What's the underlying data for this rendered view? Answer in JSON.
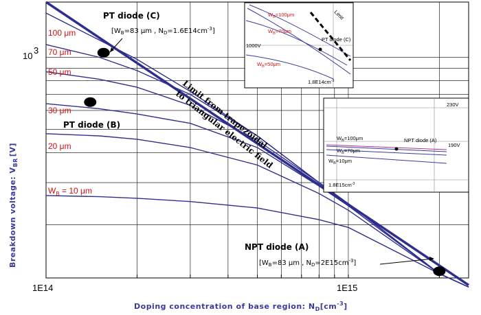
{
  "chart_data": {
    "type": "line",
    "xlabel_main": "Doping concentration of base region: N",
    "xlabel_sub": "D",
    "xlabel_unit": "[cm",
    "xlabel_unit_sup": "-3",
    "xlabel_close": "]",
    "ylabel_main": "Breakdown voltage: V",
    "ylabel_sub": "BR",
    "ylabel_unit": "[V]",
    "x_ticks": [
      "1E14",
      "1E15"
    ],
    "y_ticks": [
      "10",
      "3"
    ],
    "x_scale": "log",
    "y_scale": "log",
    "xlim": [
      100000000000000.0,
      2500000000000000.0
    ],
    "ylim": [
      120,
      1700
    ],
    "grid": true,
    "series": [
      {
        "name": "100 μm",
        "x": [
          100000000000000.0,
          150000000000000.0,
          200000000000000.0,
          300000000000000.0,
          500000000000000.0,
          800000000000000.0,
          1000000000000000.0,
          2000000000000000.0,
          2500000000000000.0
        ],
        "values": [
          1530,
          1180,
          980,
          720,
          470,
          300,
          245,
          125,
          110
        ]
      },
      {
        "name": "70 μm",
        "x": [
          100000000000000.0,
          150000000000000.0,
          200000000000000.0,
          300000000000000.0,
          500000000000000.0,
          800000000000000.0,
          1000000000000000.0,
          2000000000000000.0,
          2500000000000000.0
        ],
        "values": [
          1130,
          1000,
          880,
          700,
          470,
          300,
          245,
          125,
          110
        ]
      },
      {
        "name": "50 μm",
        "x": [
          100000000000000.0,
          150000000000000.0,
          200000000000000.0,
          300000000000000.0,
          500000000000000.0,
          800000000000000.0,
          1000000000000000.0,
          2000000000000000.0,
          2500000000000000.0
        ],
        "values": [
          870,
          810,
          750,
          630,
          450,
          300,
          245,
          125,
          110
        ]
      },
      {
        "name": "30 μm",
        "x": [
          100000000000000.0,
          150000000000000.0,
          200000000000000.0,
          300000000000000.0,
          500000000000000.0,
          800000000000000.0,
          1000000000000000.0,
          2000000000000000.0,
          2500000000000000.0
        ],
        "values": [
          640,
          610,
          580,
          530,
          420,
          290,
          240,
          125,
          110
        ]
      },
      {
        "name": "20 μm",
        "x": [
          100000000000000.0,
          150000000000000.0,
          200000000000000.0,
          300000000000000.0,
          500000000000000.0,
          800000000000000.0,
          1000000000000000.0,
          2000000000000000.0,
          2500000000000000.0
        ],
        "values": [
          480,
          470,
          455,
          420,
          355,
          270,
          230,
          125,
          110
        ]
      },
      {
        "name": "10 μm",
        "x": [
          100000000000000.0,
          150000000000000.0,
          200000000000000.0,
          300000000000000.0,
          500000000000000.0,
          800000000000000.0,
          1000000000000000.0,
          2000000000000000.0,
          2500000000000000.0
        ],
        "values": [
          265,
          262,
          258,
          250,
          235,
          210,
          195,
          125,
          110
        ]
      }
    ],
    "limit_line": {
      "x": [
        100000000000000.0,
        2500000000000000.0
      ],
      "values": [
        1700,
        112
      ]
    },
    "limit_label_1": "Limit from trapezoidal",
    "limit_label_2": "to triangular electric field",
    "series_labels": {
      "l100": "100 μm",
      "l70": "70 μm",
      "l50": "50 μm",
      "l30": "30 μm",
      "l20": "20 μm",
      "l10_w": "W",
      "l10_sub": "B",
      "l10_rest": " = 10 μm"
    },
    "points": [
      {
        "name": "PT diode (C)",
        "x": 155000000000000.0,
        "y": 1045
      },
      {
        "name": "PT diode (B)",
        "x": 140000000000000.0,
        "y": 650
      },
      {
        "name": "NPT diode (A)",
        "x": 2000000000000000.0,
        "y": 128
      }
    ],
    "annotations": {
      "c_title": "PT diode (C)",
      "c_param_1": "[W",
      "c_param_sub1": "B",
      "c_param_2": "=83 μm , N",
      "c_param_sub2": "D",
      "c_param_3": "=1.6E14cm",
      "c_param_sup": "-3",
      "c_param_4": "]",
      "b_title": "PT diode (B)",
      "a_title": "NPT diode (A)",
      "a_param_1": "[W",
      "a_param_sub1": "B",
      "a_param_2": "=83 μm , N",
      "a_param_sub2": "D",
      "a_param_3": "=2E15cm",
      "a_param_sup": "-3",
      "a_param_4": "]"
    },
    "inset_top": {
      "label_100_w": "W",
      "label_100_sub": "B",
      "label_100_rest": "=100μm",
      "label_70_w": "W",
      "label_70_sub": "B",
      "label_70_rest": "=70μm",
      "label_50_w": "W",
      "label_50_sub": "B",
      "label_50_rest": "=50μm",
      "v_label": "1000V",
      "n_label": "1.8E14cm",
      "n_label_sup": "-3",
      "point_label": "PT diode (C)",
      "limit_label": "Limit"
    },
    "inset_right": {
      "v_high": "230V",
      "v_mid": "190V",
      "label_100_w": "W",
      "label_100_sub": "B",
      "label_100_rest": "=100μm",
      "label_70_w": "W",
      "label_70_sub": "B",
      "label_70_rest": "=70μm",
      "label_10_w": "W",
      "label_10_sub": "B",
      "label_10_rest": "=10μm",
      "point_label": "NPT diode (A)",
      "n_label": "1.8E15cm",
      "n_label_sup": "-3"
    },
    "colors": {
      "curve": "#2e2e8e",
      "label_red": "#d01010",
      "axis_title": "#3a3a9a"
    }
  }
}
